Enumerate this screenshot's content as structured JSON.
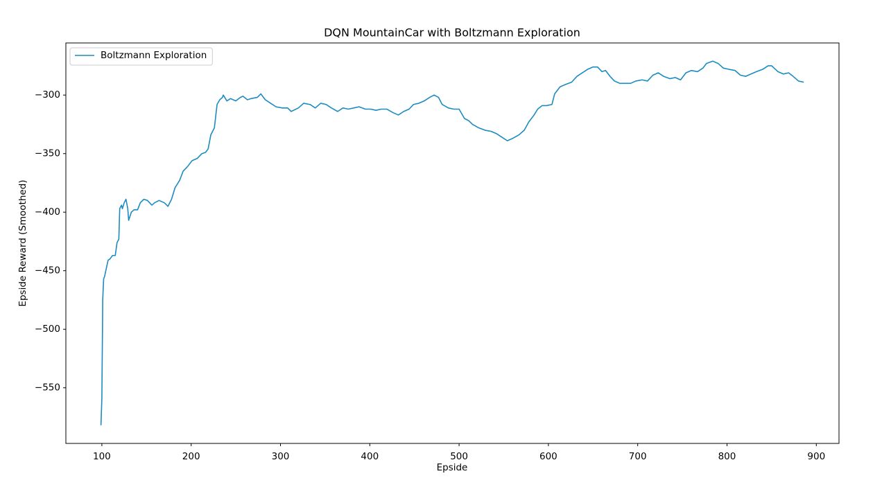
{
  "chart_data": {
    "type": "line",
    "title": "DQN MountainCar with Boltzmann Exploration",
    "x_label": "Epside",
    "y_label": "Epside Reward (Smoothed)",
    "x": [
      99,
      100,
      101,
      102,
      103,
      107,
      109,
      112,
      115,
      117,
      119,
      120,
      122,
      123,
      125,
      127,
      129,
      130,
      133,
      136,
      140,
      143,
      147,
      151,
      156,
      159,
      164,
      170,
      174,
      178,
      182,
      187,
      191,
      196,
      201,
      207,
      212,
      216,
      219,
      222,
      226,
      229,
      232,
      235,
      236,
      240,
      244,
      250,
      255,
      258,
      263,
      267,
      274,
      278,
      283,
      289,
      295,
      302,
      308,
      312,
      320,
      326,
      333,
      339,
      345,
      351,
      357,
      364,
      370,
      376,
      382,
      388,
      395,
      401,
      407,
      413,
      419,
      426,
      432,
      438,
      444,
      449,
      455,
      461,
      467,
      472,
      477,
      481,
      488,
      494,
      500,
      506,
      511,
      515,
      522,
      529,
      536,
      542,
      548,
      554,
      560,
      567,
      573,
      578,
      584,
      588,
      593,
      598,
      604,
      607,
      613,
      619,
      626,
      632,
      638,
      644,
      650,
      655,
      660,
      664,
      669,
      674,
      680,
      686,
      692,
      698,
      705,
      711,
      717,
      723,
      729,
      736,
      742,
      748,
      754,
      760,
      767,
      773,
      777,
      784,
      790,
      796,
      802,
      809,
      815,
      821,
      827,
      833,
      840,
      846,
      850,
      857,
      863,
      869,
      874,
      880,
      886
    ],
    "series": [
      {
        "name": "Boltzmann Exploration",
        "color": "#1a8bc2",
        "values": [
          -582,
          -559,
          -474,
          -457,
          -455,
          -441,
          -440,
          -437,
          -437,
          -426,
          -423,
          -397,
          -394,
          -397,
          -392,
          -389,
          -397,
          -407,
          -400,
          -398,
          -398,
          -392,
          -389,
          -390,
          -394,
          -392,
          -390,
          -392,
          -395,
          -389,
          -379,
          -373,
          -365,
          -361,
          -356,
          -354,
          -350,
          -349,
          -346,
          -334,
          -328,
          -308,
          -304,
          -302,
          -300,
          -305,
          -303,
          -305,
          -302,
          -301,
          -304,
          -303,
          -302,
          -299,
          -304,
          -307,
          -310,
          -311,
          -311,
          -314,
          -311,
          -307,
          -308,
          -311,
          -307,
          -308,
          -311,
          -314,
          -311,
          -312,
          -311,
          -310,
          -312,
          -312,
          -313,
          -312,
          -312,
          -315,
          -317,
          -314,
          -312,
          -308,
          -307,
          -305,
          -302,
          -300,
          -302,
          -308,
          -311,
          -312,
          -312,
          -320,
          -322,
          -325,
          -328,
          -330,
          -331,
          -333,
          -336,
          -339,
          -337,
          -334,
          -330,
          -323,
          -317,
          -312,
          -309,
          -309,
          -308,
          -299,
          -293,
          -291,
          -289,
          -284,
          -281,
          -278,
          -276,
          -276,
          -280,
          -279,
          -284,
          -288,
          -290,
          -290,
          -290,
          -288,
          -287,
          -288,
          -283,
          -281,
          -284,
          -286,
          -285,
          -287,
          -281,
          -279,
          -280,
          -277,
          -273,
          -271,
          -273,
          -277,
          -278,
          -279,
          -283,
          -284,
          -282,
          -280,
          -278,
          -275,
          -275,
          -280,
          -282,
          -281,
          -284,
          -288,
          -289
        ]
      }
    ],
    "xlim": [
      59.7,
      925.4
    ],
    "ylim": [
      -597.5,
      -255.5
    ],
    "xticks": [
      100,
      200,
      300,
      400,
      500,
      600,
      700,
      800,
      900
    ],
    "yticks": [
      {
        "value": -550,
        "label": "−550"
      },
      {
        "value": -500,
        "label": "−500"
      },
      {
        "value": -450,
        "label": "−450"
      },
      {
        "value": -400,
        "label": "−400"
      },
      {
        "value": -350,
        "label": "−350"
      },
      {
        "value": -300,
        "label": "−300"
      }
    ],
    "legend": "upper left"
  }
}
